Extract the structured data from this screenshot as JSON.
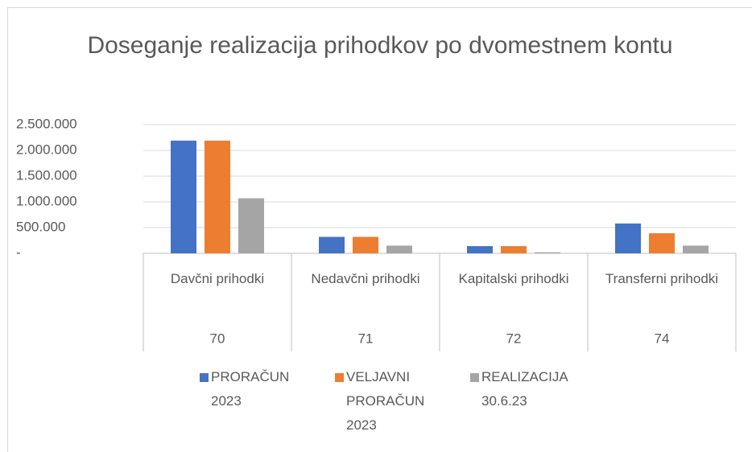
{
  "chart_data": {
    "type": "bar",
    "title": "Doseganje realizacija prihodkov po dvomestnem kontu",
    "categories": [
      "Davčni prihodki",
      "Nedavčni prihodki",
      "Kapitalski prihodki",
      "Transferni prihodki"
    ],
    "category_groups": [
      "70",
      "71",
      "72",
      "74"
    ],
    "series": [
      {
        "name": "PRORAČUN 2023",
        "color": "#4472c4",
        "values": [
          2190000,
          320000,
          140000,
          580000
        ]
      },
      {
        "name": "VELJAVNI PRORAČUN 2023",
        "color": "#ed7d31",
        "values": [
          2190000,
          320000,
          140000,
          390000
        ]
      },
      {
        "name": "REALIZACIJA 30.6.23",
        "color": "#a5a5a5",
        "values": [
          1070000,
          150000,
          20000,
          150000
        ]
      }
    ],
    "ylim": [
      0,
      2500000
    ],
    "yticks": [
      {
        "value": 0,
        "label": "-"
      },
      {
        "value": 500000,
        "label": "500.000"
      },
      {
        "value": 1000000,
        "label": "1.000.000"
      },
      {
        "value": 1500000,
        "label": "1.500.000"
      },
      {
        "value": 2000000,
        "label": "2.000.000"
      },
      {
        "value": 2500000,
        "label": "2.500.000"
      }
    ],
    "grid": true,
    "legend": "bottom"
  }
}
